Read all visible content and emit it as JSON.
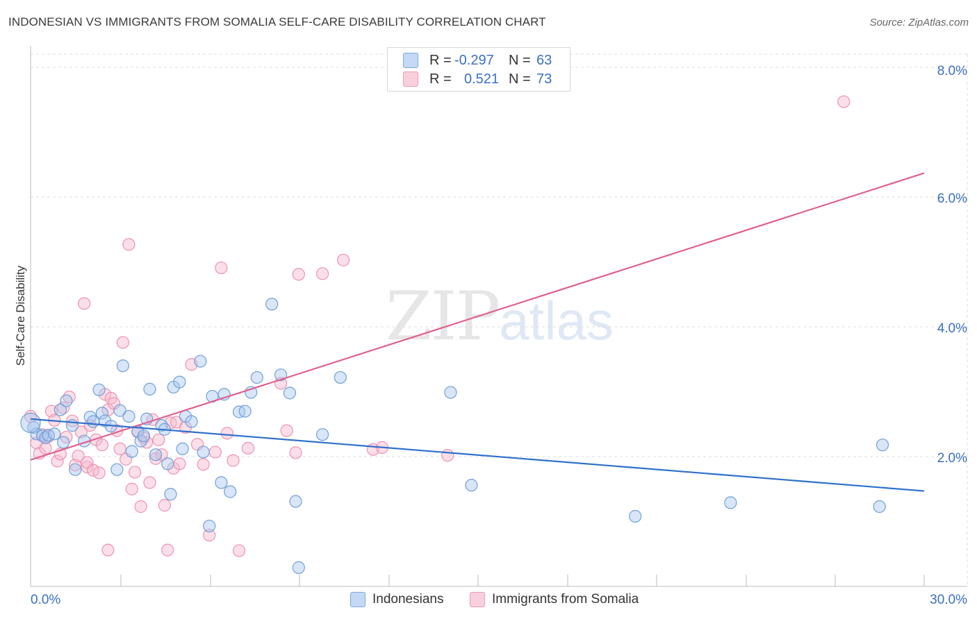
{
  "header": {
    "title": "INDONESIAN VS IMMIGRANTS FROM SOMALIA SELF-CARE DISABILITY CORRELATION CHART",
    "source": "Source: ZipAtlas.com"
  },
  "watermark": {
    "zip": "ZIP",
    "atlas": "atlas"
  },
  "legend": {
    "rows": [
      {
        "r_label": "R =",
        "r_value": "-0.297",
        "n_label": "N =",
        "n_value": "63",
        "color": "#a9c8ef"
      },
      {
        "r_label": "R =",
        "r_value": "0.521",
        "n_label": "N =",
        "n_value": "73",
        "color": "#f6b8cb"
      }
    ]
  },
  "bottom_legend": {
    "indonesians": "Indonesians",
    "somalia": "Immigrants from Somalia"
  },
  "colors": {
    "blue_fill": "#a9c8ef",
    "blue_stroke": "#6f9fd8",
    "blue_line": "#2e6fcb",
    "pink_fill": "#f6b8cb",
    "pink_stroke": "#ee92b0",
    "pink_line": "#e0608e",
    "tick_text": "#3a6fc4",
    "grid": "#dddddd"
  },
  "chart_data": {
    "type": "scatter",
    "title": "INDONESIAN VS IMMIGRANTS FROM SOMALIA SELF-CARE DISABILITY CORRELATION CHART",
    "xlabel": "",
    "ylabel": "Self-Care Disability",
    "xlim": [
      0,
      30
    ],
    "ylim": [
      0,
      8.0
    ],
    "x_tick_labels": [
      "0.0%",
      "30.0%"
    ],
    "y_ticks": [
      2,
      4,
      6,
      8
    ],
    "y_tick_labels": [
      "2.0%",
      "4.0%",
      "6.0%",
      "8.0%"
    ],
    "series": [
      {
        "name": "Indonesians",
        "trend": {
          "x": [
            0,
            30
          ],
          "y": [
            2.58,
            1.47
          ]
        },
        "points": [
          [
            0.1,
            2.45
          ],
          [
            0.2,
            2.35
          ],
          [
            0.4,
            2.32
          ],
          [
            0.5,
            2.29
          ],
          [
            0.6,
            2.33
          ],
          [
            0.8,
            2.35
          ],
          [
            1.0,
            2.72
          ],
          [
            1.1,
            2.22
          ],
          [
            1.2,
            2.86
          ],
          [
            1.4,
            2.48
          ],
          [
            1.5,
            1.8
          ],
          [
            1.8,
            2.24
          ],
          [
            2.0,
            2.61
          ],
          [
            2.1,
            2.54
          ],
          [
            2.3,
            3.03
          ],
          [
            2.4,
            2.67
          ],
          [
            2.5,
            2.55
          ],
          [
            2.7,
            2.47
          ],
          [
            2.9,
            1.8
          ],
          [
            3.0,
            2.71
          ],
          [
            3.1,
            3.4
          ],
          [
            3.3,
            2.62
          ],
          [
            3.4,
            2.08
          ],
          [
            3.6,
            2.39
          ],
          [
            3.7,
            2.24
          ],
          [
            3.8,
            2.32
          ],
          [
            3.9,
            2.58
          ],
          [
            4.0,
            3.04
          ],
          [
            4.2,
            2.03
          ],
          [
            4.4,
            2.48
          ],
          [
            4.5,
            2.42
          ],
          [
            4.6,
            1.89
          ],
          [
            4.7,
            1.42
          ],
          [
            4.8,
            3.07
          ],
          [
            5.0,
            3.15
          ],
          [
            5.1,
            2.12
          ],
          [
            5.2,
            2.62
          ],
          [
            5.4,
            2.54
          ],
          [
            5.7,
            3.47
          ],
          [
            5.8,
            2.07
          ],
          [
            6.0,
            0.93
          ],
          [
            6.1,
            2.93
          ],
          [
            6.4,
            1.6
          ],
          [
            6.5,
            2.96
          ],
          [
            6.7,
            1.46
          ],
          [
            7.0,
            2.69
          ],
          [
            7.2,
            2.7
          ],
          [
            7.4,
            2.99
          ],
          [
            7.6,
            3.22
          ],
          [
            8.1,
            4.35
          ],
          [
            8.4,
            3.26
          ],
          [
            8.7,
            2.98
          ],
          [
            8.9,
            1.31
          ],
          [
            9.0,
            0.29
          ],
          [
            9.8,
            2.34
          ],
          [
            10.4,
            3.22
          ],
          [
            14.1,
            2.99
          ],
          [
            14.8,
            1.56
          ],
          [
            20.3,
            1.08
          ],
          [
            23.5,
            1.29
          ],
          [
            28.5,
            1.23
          ],
          [
            28.6,
            2.18
          ],
          [
            0.0,
            2.52
          ]
        ]
      },
      {
        "name": "Immigrants from Somalia",
        "trend": {
          "x": [
            0,
            30
          ],
          "y": [
            1.95,
            6.37
          ]
        },
        "points": [
          [
            0.0,
            2.62
          ],
          [
            0.2,
            2.21
          ],
          [
            0.3,
            2.05
          ],
          [
            0.4,
            2.34
          ],
          [
            0.5,
            2.13
          ],
          [
            0.6,
            2.31
          ],
          [
            0.7,
            2.7
          ],
          [
            0.8,
            2.56
          ],
          [
            0.9,
            1.93
          ],
          [
            1.0,
            2.04
          ],
          [
            1.1,
            2.75
          ],
          [
            1.2,
            2.3
          ],
          [
            1.3,
            2.92
          ],
          [
            1.4,
            2.55
          ],
          [
            1.5,
            1.87
          ],
          [
            1.6,
            2.01
          ],
          [
            1.7,
            2.38
          ],
          [
            1.8,
            4.36
          ],
          [
            1.9,
            1.84
          ],
          [
            1.9,
            1.91
          ],
          [
            2.0,
            2.48
          ],
          [
            2.1,
            1.79
          ],
          [
            2.2,
            2.26
          ],
          [
            2.3,
            1.75
          ],
          [
            2.4,
            2.18
          ],
          [
            2.5,
            2.96
          ],
          [
            2.6,
            2.72
          ],
          [
            2.7,
            2.9
          ],
          [
            2.8,
            2.82
          ],
          [
            2.9,
            2.4
          ],
          [
            3.0,
            2.12
          ],
          [
            3.1,
            3.76
          ],
          [
            3.2,
            1.96
          ],
          [
            3.3,
            5.27
          ],
          [
            3.4,
            1.5
          ],
          [
            3.5,
            1.76
          ],
          [
            3.6,
            2.38
          ],
          [
            3.7,
            1.23
          ],
          [
            3.8,
            2.29
          ],
          [
            3.9,
            2.22
          ],
          [
            4.0,
            1.6
          ],
          [
            4.1,
            2.57
          ],
          [
            4.2,
            1.97
          ],
          [
            4.3,
            2.26
          ],
          [
            4.4,
            2.03
          ],
          [
            4.5,
            1.25
          ],
          [
            4.6,
            0.56
          ],
          [
            4.7,
            2.52
          ],
          [
            4.8,
            1.82
          ],
          [
            4.9,
            2.53
          ],
          [
            5.0,
            1.89
          ],
          [
            5.2,
            2.45
          ],
          [
            5.4,
            3.42
          ],
          [
            5.6,
            2.19
          ],
          [
            5.8,
            1.88
          ],
          [
            6.0,
            0.79
          ],
          [
            6.2,
            2.07
          ],
          [
            6.4,
            4.91
          ],
          [
            6.6,
            2.36
          ],
          [
            6.8,
            1.94
          ],
          [
            7.0,
            0.55
          ],
          [
            7.3,
            2.13
          ],
          [
            8.4,
            3.13
          ],
          [
            8.6,
            2.4
          ],
          [
            8.9,
            2.06
          ],
          [
            9.0,
            4.81
          ],
          [
            9.8,
            4.82
          ],
          [
            10.5,
            5.03
          ],
          [
            11.5,
            2.11
          ],
          [
            11.8,
            2.14
          ],
          [
            14.0,
            2.02
          ],
          [
            27.3,
            7.47
          ],
          [
            2.6,
            0.56
          ]
        ]
      }
    ]
  }
}
